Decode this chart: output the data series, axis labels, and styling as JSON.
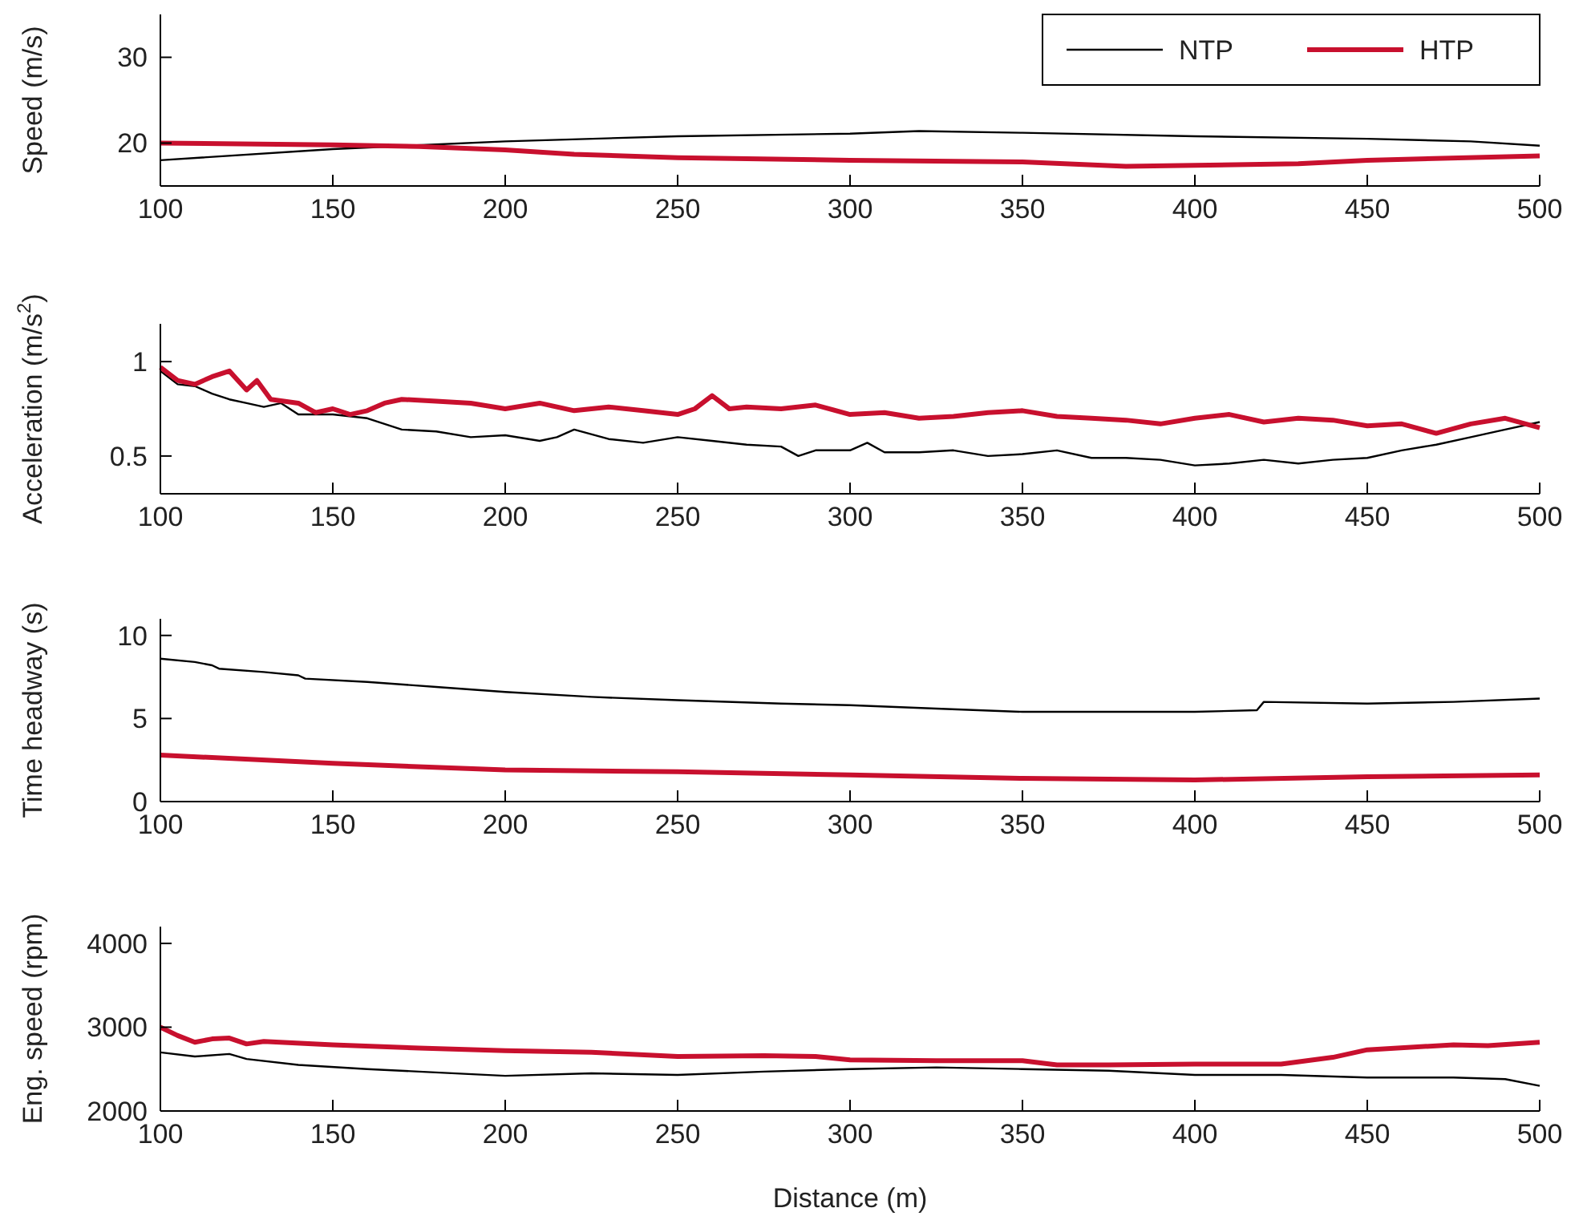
{
  "chart_data": [
    {
      "type": "line",
      "ylabel": "Speed (m/s)",
      "xlim": [
        100,
        500
      ],
      "xticks": [
        100,
        150,
        200,
        250,
        300,
        350,
        400,
        450,
        500
      ],
      "ylim": [
        15,
        35
      ],
      "yticks": [
        20,
        30
      ],
      "legend": "top right",
      "grid": false,
      "series": [
        {
          "name": "NTP",
          "color": "#000000",
          "x": [
            100,
            150,
            200,
            250,
            300,
            320,
            350,
            400,
            450,
            480,
            500
          ],
          "values": [
            18,
            19.3,
            20.2,
            20.8,
            21.1,
            21.4,
            21.2,
            20.8,
            20.5,
            20.2,
            19.7
          ]
        },
        {
          "name": "HTP",
          "color": "#c8102e",
          "x": [
            100,
            150,
            175,
            200,
            220,
            250,
            300,
            350,
            380,
            400,
            430,
            450,
            500
          ],
          "values": [
            20,
            19.8,
            19.6,
            19.2,
            18.7,
            18.3,
            18,
            17.8,
            17.3,
            17.4,
            17.6,
            18,
            18.5
          ]
        }
      ]
    },
    {
      "type": "line",
      "ylabel": "Acceleration (m/s$^{2}$)",
      "xlim": [
        100,
        500
      ],
      "xticks": [
        100,
        150,
        200,
        250,
        300,
        350,
        400,
        450,
        500
      ],
      "ylim": [
        0.3,
        1.2
      ],
      "yticks": [
        0.5,
        1
      ],
      "grid": false,
      "series": [
        {
          "color": "#000000",
          "x": [
            100,
            105,
            110,
            115,
            120,
            125,
            130,
            135,
            140,
            150,
            160,
            170,
            180,
            190,
            200,
            210,
            215,
            220,
            230,
            240,
            250,
            260,
            270,
            280,
            285,
            290,
            300,
            305,
            310,
            320,
            330,
            340,
            350,
            360,
            370,
            380,
            390,
            400,
            410,
            420,
            430,
            440,
            450,
            460,
            470,
            480,
            490,
            500
          ],
          "values": [
            0.95,
            0.88,
            0.87,
            0.83,
            0.8,
            0.78,
            0.76,
            0.78,
            0.72,
            0.72,
            0.7,
            0.64,
            0.63,
            0.6,
            0.61,
            0.58,
            0.6,
            0.64,
            0.59,
            0.57,
            0.6,
            0.58,
            0.56,
            0.55,
            0.5,
            0.53,
            0.53,
            0.57,
            0.52,
            0.52,
            0.53,
            0.5,
            0.51,
            0.53,
            0.49,
            0.49,
            0.48,
            0.45,
            0.46,
            0.48,
            0.46,
            0.48,
            0.49,
            0.53,
            0.56,
            0.6,
            0.64,
            0.68
          ]
        },
        {
          "color": "#c8102e",
          "x": [
            100,
            105,
            110,
            115,
            120,
            125,
            128,
            132,
            140,
            145,
            150,
            155,
            160,
            165,
            170,
            180,
            190,
            200,
            210,
            220,
            230,
            240,
            250,
            255,
            260,
            265,
            270,
            280,
            290,
            300,
            310,
            320,
            330,
            340,
            350,
            360,
            370,
            380,
            390,
            400,
            410,
            420,
            430,
            440,
            450,
            460,
            470,
            480,
            490,
            500
          ],
          "values": [
            0.97,
            0.9,
            0.88,
            0.92,
            0.95,
            0.85,
            0.9,
            0.8,
            0.78,
            0.73,
            0.75,
            0.72,
            0.74,
            0.78,
            0.8,
            0.79,
            0.78,
            0.75,
            0.78,
            0.74,
            0.76,
            0.74,
            0.72,
            0.75,
            0.82,
            0.75,
            0.76,
            0.75,
            0.77,
            0.72,
            0.73,
            0.7,
            0.71,
            0.73,
            0.74,
            0.71,
            0.7,
            0.69,
            0.67,
            0.7,
            0.72,
            0.68,
            0.7,
            0.69,
            0.66,
            0.67,
            0.62,
            0.67,
            0.7,
            0.65
          ]
        }
      ]
    },
    {
      "type": "line",
      "ylabel": "Time headway (s)",
      "xlim": [
        100,
        500
      ],
      "xticks": [
        100,
        150,
        200,
        250,
        300,
        350,
        400,
        450,
        500
      ],
      "ylim": [
        0,
        11
      ],
      "yticks": [
        0,
        5,
        10
      ],
      "grid": false,
      "series": [
        {
          "color": "#000000",
          "x": [
            100,
            110,
            115,
            117,
            130,
            140,
            142,
            160,
            180,
            200,
            225,
            250,
            280,
            300,
            325,
            350,
            375,
            400,
            418,
            420,
            450,
            475,
            500
          ],
          "values": [
            8.6,
            8.4,
            8.2,
            8,
            7.8,
            7.6,
            7.4,
            7.2,
            6.9,
            6.6,
            6.3,
            6.1,
            5.9,
            5.8,
            5.6,
            5.4,
            5.4,
            5.4,
            5.5,
            6,
            5.9,
            6,
            6.2
          ]
        },
        {
          "color": "#c8102e",
          "x": [
            100,
            150,
            200,
            250,
            300,
            350,
            400,
            450,
            500
          ],
          "values": [
            2.8,
            2.3,
            1.9,
            1.8,
            1.6,
            1.4,
            1.3,
            1.5,
            1.6
          ]
        }
      ]
    },
    {
      "type": "line",
      "ylabel": "Eng. speed (rpm)",
      "xlabel": "Distance (m)",
      "xlim": [
        100,
        500
      ],
      "xticks": [
        100,
        150,
        200,
        250,
        300,
        350,
        400,
        450,
        500
      ],
      "ylim": [
        2000,
        4200
      ],
      "yticks": [
        2000,
        3000,
        4000
      ],
      "grid": false,
      "series": [
        {
          "color": "#000000",
          "x": [
            100,
            110,
            120,
            125,
            140,
            160,
            175,
            200,
            225,
            250,
            275,
            300,
            325,
            350,
            375,
            400,
            425,
            450,
            475,
            490,
            500
          ],
          "values": [
            2700,
            2650,
            2680,
            2620,
            2550,
            2500,
            2470,
            2420,
            2450,
            2430,
            2470,
            2500,
            2520,
            2500,
            2480,
            2430,
            2430,
            2400,
            2400,
            2380,
            2300
          ]
        },
        {
          "color": "#c8102e",
          "x": [
            100,
            105,
            110,
            115,
            120,
            125,
            130,
            150,
            175,
            200,
            225,
            250,
            275,
            290,
            300,
            325,
            350,
            360,
            375,
            400,
            425,
            440,
            450,
            475,
            485,
            500
          ],
          "values": [
            3000,
            2900,
            2820,
            2860,
            2870,
            2800,
            2830,
            2790,
            2750,
            2720,
            2700,
            2650,
            2660,
            2650,
            2610,
            2600,
            2600,
            2550,
            2550,
            2560,
            2560,
            2640,
            2730,
            2790,
            2780,
            2820
          ]
        }
      ]
    }
  ]
}
